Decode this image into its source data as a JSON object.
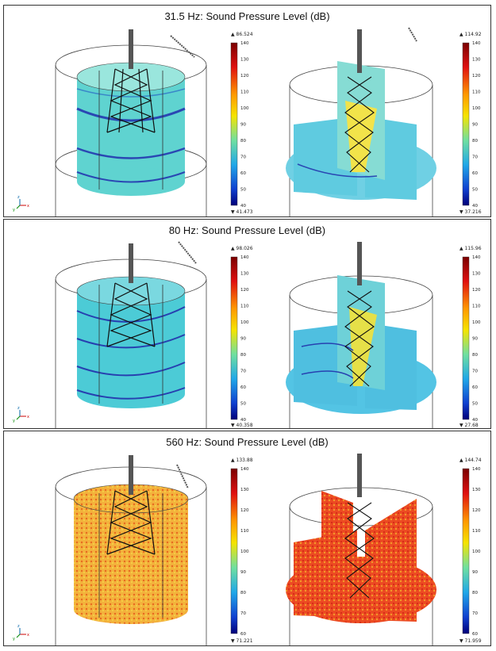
{
  "panels": [
    {
      "title": "31.5 Hz: Sound Pressure Level (dB)",
      "left_bar": {
        "max_label": "▲ 86.524",
        "min_label": "▼ 41.473",
        "ticks": [
          "140",
          "130",
          "120",
          "110",
          "100",
          "90",
          "80",
          "70",
          "60",
          "50",
          "40"
        ]
      },
      "right_bar": {
        "max_label": "▲ 114.92",
        "min_label": "▼ 37.216",
        "ticks": [
          "140",
          "130",
          "120",
          "110",
          "100",
          "90",
          "80",
          "70",
          "60",
          "50",
          "40"
        ]
      },
      "left_fill": "#5fd3d0",
      "right_fill": "#6fd0e4",
      "accent": "#2a47b3"
    },
    {
      "title": "80 Hz: Sound Pressure Level (dB)",
      "left_bar": {
        "max_label": "▲ 98.026",
        "min_label": "▼ 40.358",
        "ticks": [
          "140",
          "130",
          "120",
          "110",
          "100",
          "90",
          "80",
          "70",
          "60",
          "50",
          "40"
        ]
      },
      "right_bar": {
        "max_label": "▲ 115.96",
        "min_label": "▼ 27.68",
        "ticks": [
          "140",
          "130",
          "120",
          "110",
          "100",
          "90",
          "80",
          "70",
          "60",
          "50",
          "40"
        ]
      },
      "left_fill": "#4ccbd6",
      "right_fill": "#53c4e4",
      "accent": "#2740b0"
    },
    {
      "title": "560 Hz: Sound Pressure Level (dB)",
      "left_bar": {
        "max_label": "▲ 133.88",
        "min_label": "▼ 71.221",
        "ticks": [
          "140",
          "130",
          "120",
          "110",
          "100",
          "90",
          "80",
          "70",
          "60"
        ]
      },
      "right_bar": {
        "max_label": "▲ 144.74",
        "min_label": "▼ 71.959",
        "ticks": [
          "140",
          "130",
          "120",
          "110",
          "100",
          "90",
          "80",
          "70",
          "60"
        ]
      },
      "left_fill": "#f3b23c",
      "right_fill": "#ec4a22",
      "accent": "#e8d84a"
    }
  ],
  "axis_labels": {
    "x": "x",
    "y": "y",
    "z": "z"
  }
}
